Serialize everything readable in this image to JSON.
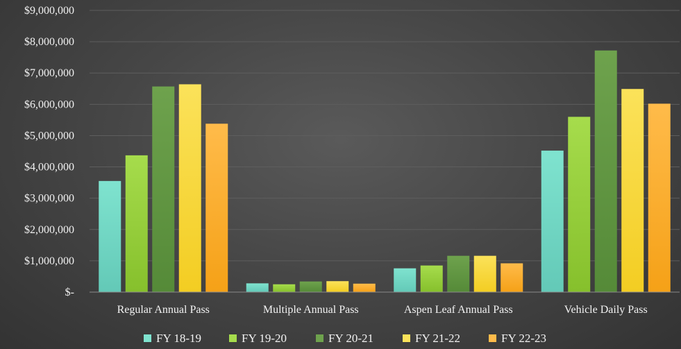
{
  "chart_data": {
    "type": "bar",
    "title": "",
    "xlabel": "",
    "ylabel": "",
    "categories": [
      "Regular Annual Pass",
      "Multiple Annual Pass",
      "Aspen Leaf Annual Pass",
      "Vehicle Daily Pass"
    ],
    "ylim": [
      0,
      9000000
    ],
    "y_ticks": [
      0,
      1000000,
      2000000,
      3000000,
      4000000,
      5000000,
      6000000,
      7000000,
      8000000,
      9000000
    ],
    "y_tick_labels": [
      "$-",
      "$1,000,000",
      "$2,000,000",
      "$3,000,000",
      "$4,000,000",
      "$5,000,000",
      "$6,000,000",
      "$7,000,000",
      "$8,000,000",
      "$9,000,000"
    ],
    "grid": true,
    "legend_position": "bottom",
    "series": [
      {
        "name": "FY 18-19",
        "color": "#7fe3cf",
        "color_dark": "#63c9b7",
        "values": [
          3550000,
          280000,
          760000,
          4520000
        ]
      },
      {
        "name": "FY 19-20",
        "color": "#a6dc4c",
        "color_dark": "#86c02c",
        "values": [
          4370000,
          250000,
          850000,
          5600000
        ]
      },
      {
        "name": "FY 20-21",
        "color": "#6ea24d",
        "color_dark": "#558a38",
        "values": [
          6570000,
          340000,
          1160000,
          7720000
        ]
      },
      {
        "name": "FY 21-22",
        "color": "#fbe25a",
        "color_dark": "#f3cd22",
        "values": [
          6640000,
          350000,
          1160000,
          6490000
        ]
      },
      {
        "name": "FY 22-23",
        "color": "#ffbb4a",
        "color_dark": "#f5a117",
        "values": [
          5380000,
          270000,
          920000,
          6020000
        ]
      }
    ]
  }
}
